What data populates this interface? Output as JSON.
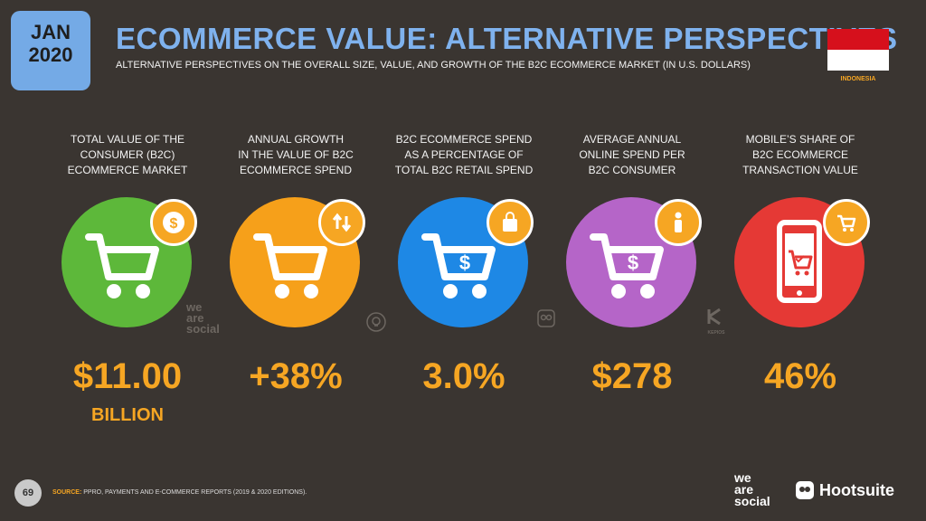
{
  "header": {
    "month": "JAN",
    "year": "2020",
    "title": "ECOMMERCE VALUE: ALTERNATIVE PERSPECTIVES",
    "subtitle": "ALTERNATIVE PERSPECTIVES ON THE OVERALL SIZE, VALUE, AND GROWTH OF THE B2C ECOMMERCE MARKET (IN U.S. DOLLARS)",
    "country": "INDONESIA"
  },
  "colors": {
    "background": "#3a3531",
    "accent": "#f6a623",
    "title": "#7fb2ee",
    "green": "#5db83a",
    "orange": "#f6a01a",
    "blue": "#1e88e5",
    "purple": "#b565c8",
    "red": "#e53935"
  },
  "stats": [
    {
      "label_lines": [
        "TOTAL VALUE OF THE",
        "CONSUMER (B2C)",
        "ECOMMERCE MARKET"
      ],
      "value": "$11.00",
      "unit": "BILLION",
      "icon": "dollar-badge-icon"
    },
    {
      "label_lines": [
        "ANNUAL GROWTH",
        "IN THE VALUE OF B2C",
        "ECOMMERCE SPEND"
      ],
      "value": "+38%",
      "unit": "",
      "icon": "up-down-arrows-icon"
    },
    {
      "label_lines": [
        "B2C ECOMMERCE SPEND",
        "AS A PERCENTAGE OF",
        "TOTAL B2C RETAIL SPEND"
      ],
      "value": "3.0%",
      "unit": "",
      "icon": "shopping-bag-icon"
    },
    {
      "label_lines": [
        "AVERAGE ANNUAL",
        "ONLINE SPEND PER",
        "B2C CONSUMER"
      ],
      "value": "$278",
      "unit": "",
      "icon": "person-icon"
    },
    {
      "label_lines": [
        "MOBILE’S SHARE OF",
        "B2C ECOMMERCE",
        "TRANSACTION VALUE"
      ],
      "value": "46%",
      "unit": "",
      "icon": "cart-badge-icon"
    }
  ],
  "footer": {
    "page": "69",
    "source_label": "SOURCE:",
    "source_text": "PPRO, PAYMENTS AND E-COMMERCE REPORTS (2019 & 2020 EDITIONS).",
    "we_are_social": [
      "we",
      "are",
      "social"
    ],
    "hootsuite": "Hootsuite",
    "kepios": "KEPIOS"
  }
}
